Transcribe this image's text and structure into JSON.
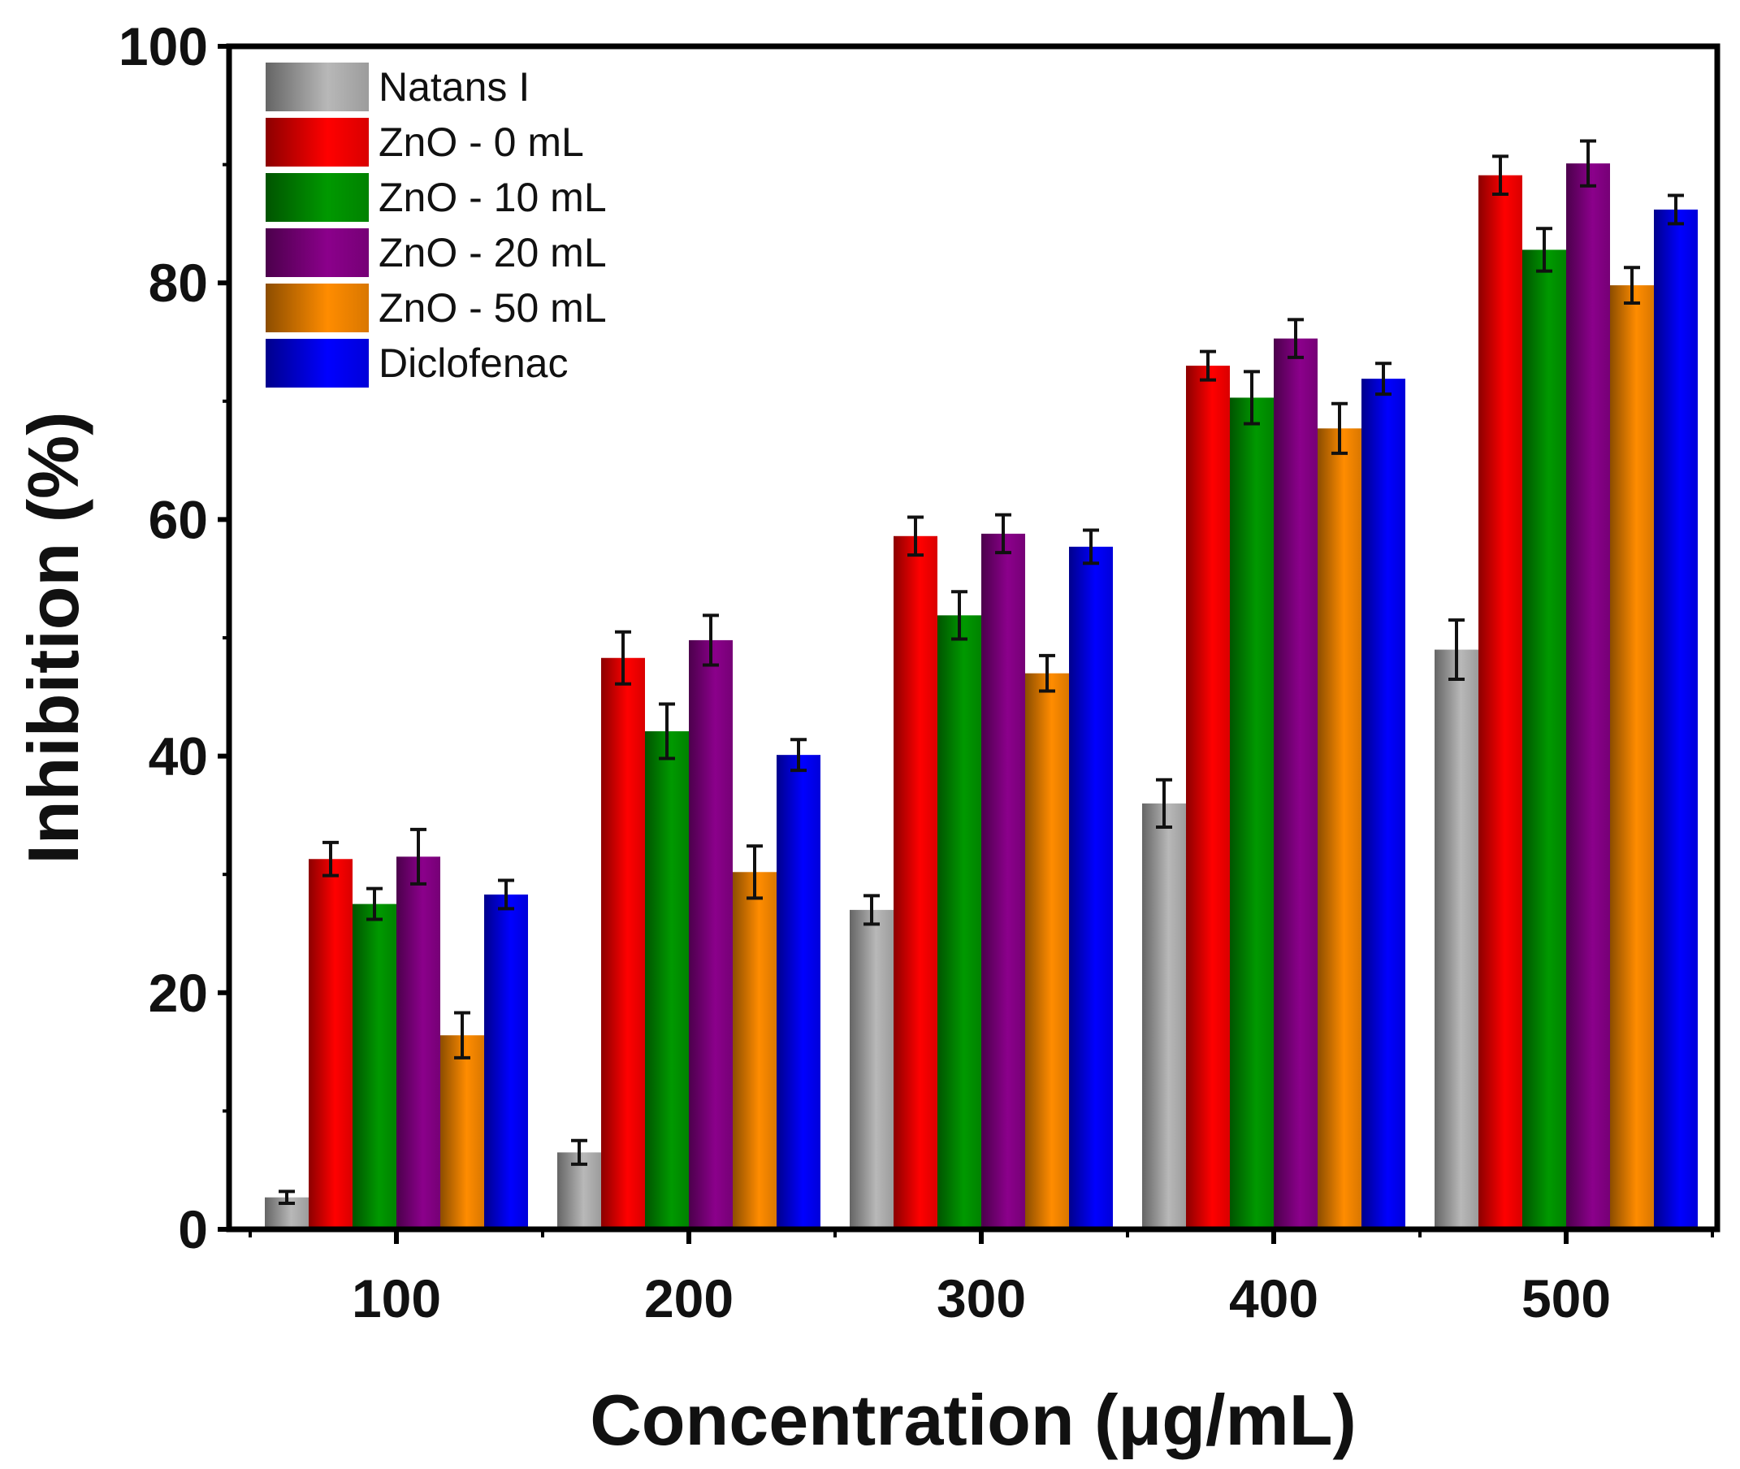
{
  "chart_data": {
    "type": "bar",
    "title": "",
    "xlabel": "Concentration (μg/mL)",
    "ylabel": "Inhibition (%)",
    "ylim": [
      0,
      100
    ],
    "yticks": [
      "0",
      "20",
      "40",
      "60",
      "80",
      "100"
    ],
    "categories": [
      "100",
      "200",
      "300",
      "400",
      "500"
    ],
    "legend_position": "top-left",
    "grid": false,
    "error_bars": true,
    "series": [
      {
        "name": "Natans I",
        "color": "#b8b8b8",
        "values": [
          2.7,
          6.5,
          27.0,
          36.0,
          49.0
        ],
        "errors": [
          0.5,
          1.0,
          1.2,
          2.0,
          2.5
        ]
      },
      {
        "name": "ZnO - 0 mL",
        "color": "#ff0000",
        "values": [
          31.3,
          48.3,
          58.6,
          73.0,
          89.1
        ],
        "errors": [
          1.4,
          2.2,
          1.6,
          1.2,
          1.6
        ]
      },
      {
        "name": "ZnO - 10 mL",
        "color": "#009900",
        "values": [
          27.5,
          42.1,
          51.9,
          70.3,
          82.8
        ],
        "errors": [
          1.3,
          2.3,
          2.0,
          2.2,
          1.8
        ]
      },
      {
        "name": "ZnO - 20 mL",
        "color": "#8b008b",
        "values": [
          31.5,
          49.8,
          58.8,
          75.3,
          90.1
        ],
        "errors": [
          2.3,
          2.1,
          1.6,
          1.6,
          1.9
        ]
      },
      {
        "name": "ZnO - 50 mL",
        "color": "#ff8c00",
        "values": [
          16.4,
          30.2,
          47.0,
          67.7,
          79.8
        ],
        "errors": [
          1.9,
          2.2,
          1.5,
          2.1,
          1.5
        ]
      },
      {
        "name": "Diclofenac",
        "color": "#0000ff",
        "values": [
          28.3,
          40.1,
          57.7,
          71.9,
          86.2
        ],
        "errors": [
          1.2,
          1.3,
          1.4,
          1.3,
          1.2
        ]
      }
    ]
  }
}
